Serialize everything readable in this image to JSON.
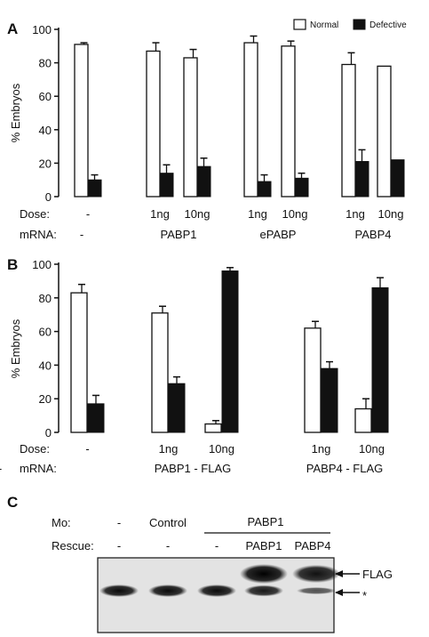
{
  "chart_data": [
    {
      "panel": "A",
      "type": "bar",
      "ylabel": "% Embryos",
      "ylim": [
        0,
        100
      ],
      "yticks": [
        0,
        20,
        40,
        60,
        80,
        100
      ],
      "legend": [
        "Normal",
        "Defective"
      ],
      "legend_placement": "top-right",
      "groups": [
        {
          "dose": "-",
          "mrna": "-",
          "normal": 91,
          "normal_err": 1,
          "defective": 10,
          "defective_err": 3
        },
        {
          "dose": "1ng",
          "mrna": "PABP1",
          "normal": 87,
          "normal_err": 5,
          "defective": 14,
          "defective_err": 5
        },
        {
          "dose": "10ng",
          "mrna": "",
          "normal": 83,
          "normal_err": 5,
          "defective": 18,
          "defective_err": 5
        },
        {
          "dose": "1ng",
          "mrna": "ePABP",
          "normal": 92,
          "normal_err": 4,
          "defective": 9,
          "defective_err": 4
        },
        {
          "dose": "10ng",
          "mrna": "",
          "normal": 90,
          "normal_err": 3,
          "defective": 11,
          "defective_err": 3
        },
        {
          "dose": "1ng",
          "mrna": "PABP4",
          "normal": 79,
          "normal_err": 7,
          "defective": 21,
          "defective_err": 7
        },
        {
          "dose": "10ng",
          "mrna": "",
          "normal": 78,
          "normal_err": 0,
          "defective": 22,
          "defective_err": 0
        }
      ],
      "row_labels": {
        "dose": "Dose:",
        "mrna": "mRNA:"
      }
    },
    {
      "panel": "B",
      "type": "bar",
      "ylabel": "% Embryos",
      "ylim": [
        0,
        100
      ],
      "yticks": [
        0,
        20,
        40,
        60,
        80,
        100
      ],
      "groups": [
        {
          "dose": "-",
          "mrna": "-",
          "normal": 83,
          "normal_err": 5,
          "defective": 17,
          "defective_err": 5
        },
        {
          "dose": "1ng",
          "mrna": "PABP1 - FLAG",
          "normal": 71,
          "normal_err": 4,
          "defective": 29,
          "defective_err": 4
        },
        {
          "dose": "10ng",
          "mrna": "",
          "normal": 5,
          "normal_err": 2,
          "defective": 96,
          "defective_err": 2
        },
        {
          "dose": "1ng",
          "mrna": "PABP4 - FLAG",
          "normal": 62,
          "normal_err": 4,
          "defective": 38,
          "defective_err": 4
        },
        {
          "dose": "10ng",
          "mrna": "",
          "normal": 14,
          "normal_err": 6,
          "defective": 86,
          "defective_err": 6
        }
      ],
      "row_labels": {
        "dose": "Dose:",
        "mrna": "mRNA:"
      }
    },
    {
      "panel": "C",
      "type": "blot",
      "row_labels": {
        "mo": "Mo:",
        "rescue": "Rescue:"
      },
      "lanes": [
        {
          "mo": "-",
          "rescue": "-",
          "flag": 0,
          "star": 1.0
        },
        {
          "mo": "Control",
          "rescue": "-",
          "flag": 0,
          "star": 1.0
        },
        {
          "mo": "PABP1",
          "rescue": "-",
          "flag": 0,
          "star": 1.0
        },
        {
          "mo": "",
          "rescue": "PABP1",
          "flag": 1.0,
          "star": 0.9
        },
        {
          "mo": "",
          "rescue": "PABP4",
          "flag": 0.85,
          "star": 0.5
        }
      ],
      "band_labels": [
        "FLAG",
        "*"
      ]
    }
  ]
}
